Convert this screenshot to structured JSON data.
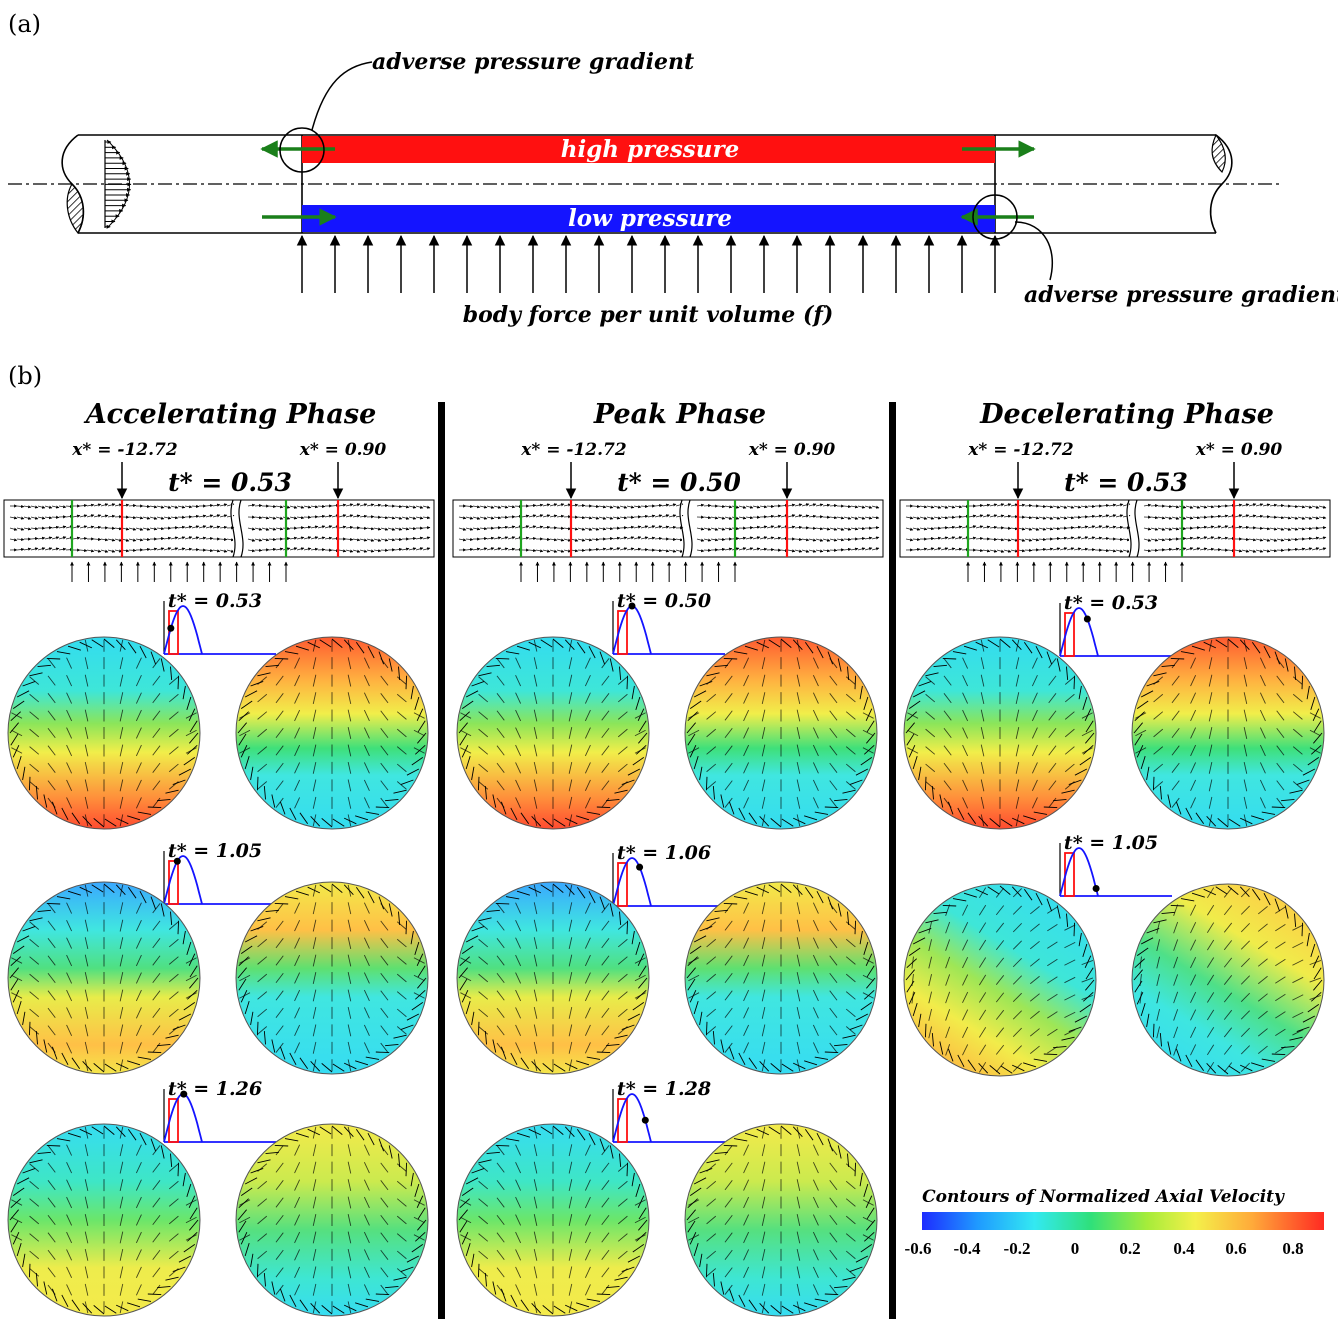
{
  "panel_a": {
    "label": "(a)",
    "adverse_top": "adverse pressure gradient",
    "adverse_bottom": "adverse pressure gradient",
    "high": "high pressure",
    "low": "low pressure",
    "body_force": "body force per unit volume (f)",
    "colors": {
      "high": "#ff1010",
      "low": "#1414ff",
      "arrow": "#1a7f1a"
    }
  },
  "panel_b": {
    "label": "(b)",
    "colorbar": {
      "title": "Contours of Normalized Axial Velocity",
      "ticks": [
        "-0.6",
        "-0.4",
        "-0.2",
        "0",
        "0.2",
        "0.4",
        "0.6",
        "0.8"
      ]
    },
    "columns": [
      {
        "phase": "Accelerating Phase",
        "x_left": "x* = -12.72",
        "x_right": "x* = 0.90",
        "t_main": "t* = 0.53",
        "rows": [
          {
            "t": "t* = 0.53",
            "dot": 0.18,
            "left": "lowtop",
            "right": "hightop"
          },
          {
            "t": "t* = 1.05",
            "dot": 0.35,
            "left": "mixed_a",
            "right": "mixed_b"
          },
          {
            "t": "t* = 1.26",
            "dot": 0.52,
            "left": "green_a",
            "right": "green_b"
          }
        ]
      },
      {
        "phase": "Peak Phase",
        "x_left": "x* = -12.72",
        "x_right": "x* = 0.90",
        "t_main": "t* = 0.50",
        "rows": [
          {
            "t": "t* = 0.50",
            "dot": 0.5,
            "left": "lowtop",
            "right": "hightop"
          },
          {
            "t": "t* = 1.06",
            "dot": 0.7,
            "left": "mixed_a",
            "right": "mixed_b"
          },
          {
            "t": "t* = 1.28",
            "dot": 0.85,
            "left": "green_a",
            "right": "green_b"
          }
        ]
      },
      {
        "phase": "Decelerating Phase",
        "x_left": "x* = -12.72",
        "x_right": "x* = 0.90",
        "t_main": "t* = 0.53",
        "rows": [
          {
            "t": "t* = 0.53",
            "dot": 0.72,
            "left": "lowtop",
            "right": "hightop"
          },
          {
            "t": "t* = 1.05",
            "dot": 0.95,
            "left": "diag_a",
            "right": "diag_b"
          }
        ]
      }
    ]
  }
}
